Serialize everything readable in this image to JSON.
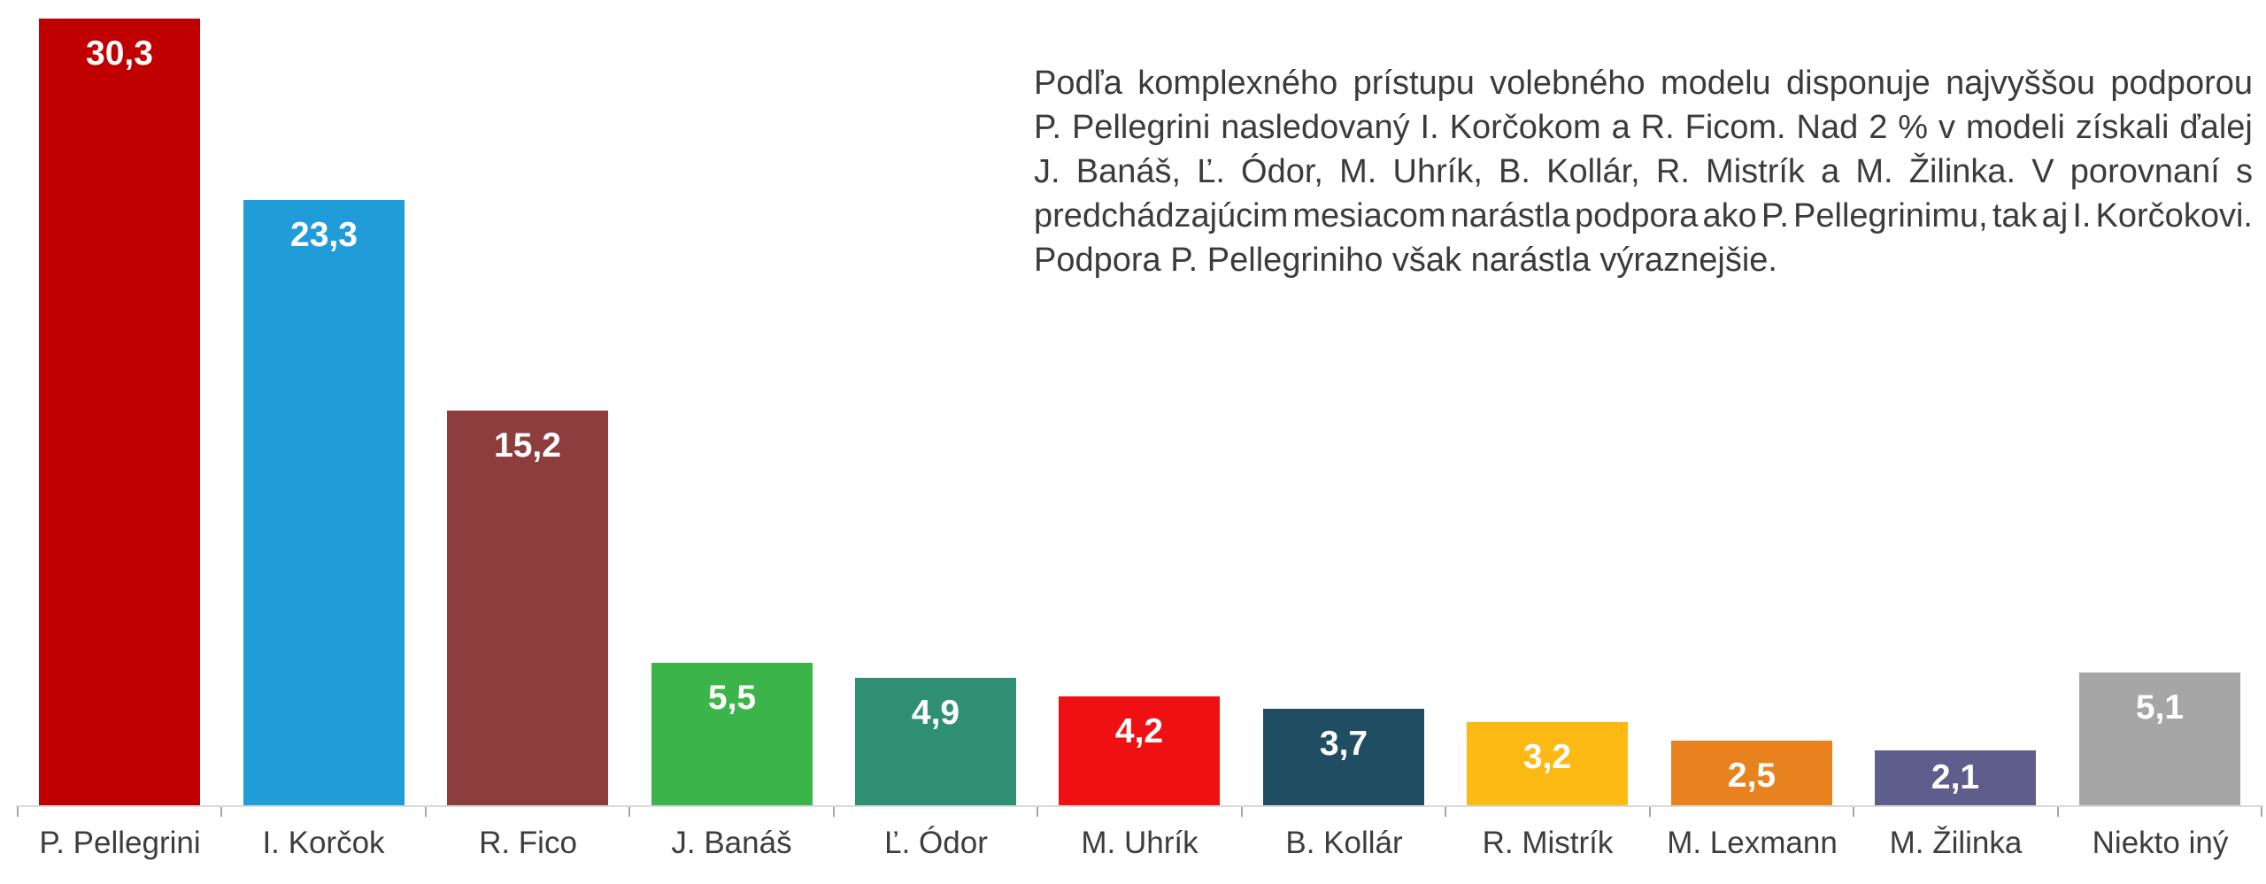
{
  "chart_data": {
    "type": "bar",
    "title": "",
    "categories": [
      "P. Pellegrini",
      "I. Korčok",
      "R. Fico",
      "J. Banáš",
      "Ľ. Ódor",
      "M. Uhrík",
      "B. Kollár",
      "R. Mistrík",
      "M. Lexmann",
      "M. Žilinka",
      "Niekto iný"
    ],
    "values": [
      30.3,
      23.3,
      15.2,
      5.5,
      4.9,
      4.2,
      3.7,
      3.2,
      2.5,
      2.1,
      5.1
    ],
    "value_labels": [
      "30,3",
      "23,3",
      "15,2",
      "5,5",
      "4,9",
      "4,2",
      "3,7",
      "3,2",
      "2,5",
      "2,1",
      "5,1"
    ],
    "bar_colors": [
      "#c00000",
      "#209cd8",
      "#8e3d3d",
      "#3bb54a",
      "#2e8f73",
      "#ef1014",
      "#1f4e63",
      "#fcb813",
      "#e8821f",
      "#5f5d8c",
      "#a6a6a6"
    ],
    "ylim": [
      0,
      31
    ],
    "grid": false,
    "legend": false,
    "y_axis_visible": false,
    "value_label_color": "#ffffff",
    "axis_line_color": "#d9d9d9",
    "tick_color": "#a6a6a6",
    "category_label_color": "#3d3d3d"
  },
  "annotation": {
    "color": "#3b3b3b",
    "lines": [
      {
        "text": "Podľa komplexného prístupu volebného modelu disponuje najvyššou podporou",
        "justify": true
      },
      {
        "text": "P. Pellegrini nasledovaný I. Korčokom a R. Ficom. Nad 2 % v modeli získali ďalej",
        "justify": true
      },
      {
        "text": "J. Banáš, Ľ. Ódor, M. Uhrík, B. Kollár, R. Mistrík a M. Žilinka. V porovnaní s",
        "justify": true
      },
      {
        "text": "predchádzajúcim mesiacom narástla podpora ako P. Pellegrinimu, tak aj I. Korčokovi.",
        "justify": true
      },
      {
        "text": "Podpora P. Pellegriniho však narástla výraznejšie.",
        "justify": false
      }
    ]
  }
}
